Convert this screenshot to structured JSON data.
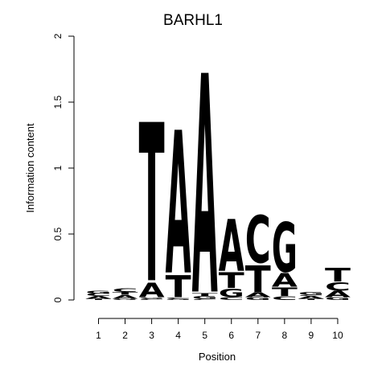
{
  "chart_data": {
    "type": "sequence-logo",
    "title": "BARHL1",
    "xlabel": "Position",
    "ylabel": "Information content",
    "ylim": [
      0,
      2
    ],
    "y_ticks": [
      0,
      0.5,
      1,
      1.5,
      2
    ],
    "y_tick_labels": [
      "0",
      "0.5",
      "1",
      "1.5",
      "2"
    ],
    "positions": [
      1,
      2,
      3,
      4,
      5,
      6,
      7,
      8,
      9,
      10
    ],
    "position_labels": [
      "1",
      "2",
      "3",
      "4",
      "5",
      "6",
      "7",
      "8",
      "9",
      "10"
    ],
    "colors": {
      "A": "#00ee00",
      "C": "#0000ee",
      "G": "#f5a000",
      "T": "#ff0000"
    },
    "stacks": [
      [
        {
          "letter": "T",
          "height": 0.01
        },
        {
          "letter": "A",
          "height": 0.02
        },
        {
          "letter": "C",
          "height": 0.02
        },
        {
          "letter": "G",
          "height": 0.02
        }
      ],
      [
        {
          "letter": "G",
          "height": 0.01
        },
        {
          "letter": "A",
          "height": 0.03
        },
        {
          "letter": "T",
          "height": 0.02
        },
        {
          "letter": "C",
          "height": 0.03
        }
      ],
      [
        {
          "letter": "C",
          "height": 0.01
        },
        {
          "letter": "G",
          "height": 0.01
        },
        {
          "letter": "A",
          "height": 0.12
        },
        {
          "letter": "T",
          "height": 1.31
        }
      ],
      [
        {
          "letter": "G",
          "height": 0.01
        },
        {
          "letter": "C",
          "height": 0.01
        },
        {
          "letter": "T",
          "height": 0.18
        },
        {
          "letter": "A",
          "height": 1.18
        }
      ],
      [
        {
          "letter": "C",
          "height": 0.01
        },
        {
          "letter": "G",
          "height": 0.02
        },
        {
          "letter": "T",
          "height": 0.02
        },
        {
          "letter": "A",
          "height": 1.81
        }
      ],
      [
        {
          "letter": "C",
          "height": 0.02
        },
        {
          "letter": "G",
          "height": 0.07
        },
        {
          "letter": "T",
          "height": 0.13
        },
        {
          "letter": "A",
          "height": 0.43
        }
      ],
      [
        {
          "letter": "G",
          "height": 0.02
        },
        {
          "letter": "A",
          "height": 0.04
        },
        {
          "letter": "T",
          "height": 0.22
        },
        {
          "letter": "C",
          "height": 0.39
        }
      ],
      [
        {
          "letter": "C",
          "height": 0.03
        },
        {
          "letter": "T",
          "height": 0.07
        },
        {
          "letter": "A",
          "height": 0.11
        },
        {
          "letter": "G",
          "height": 0.41
        }
      ],
      [
        {
          "letter": "T",
          "height": 0.01
        },
        {
          "letter": "A",
          "height": 0.02
        },
        {
          "letter": "C",
          "height": 0.01
        },
        {
          "letter": "G",
          "height": 0.02
        }
      ],
      [
        {
          "letter": "G",
          "height": 0.02
        },
        {
          "letter": "A",
          "height": 0.05
        },
        {
          "letter": "C",
          "height": 0.07
        },
        {
          "letter": "T",
          "height": 0.11
        }
      ]
    ]
  }
}
